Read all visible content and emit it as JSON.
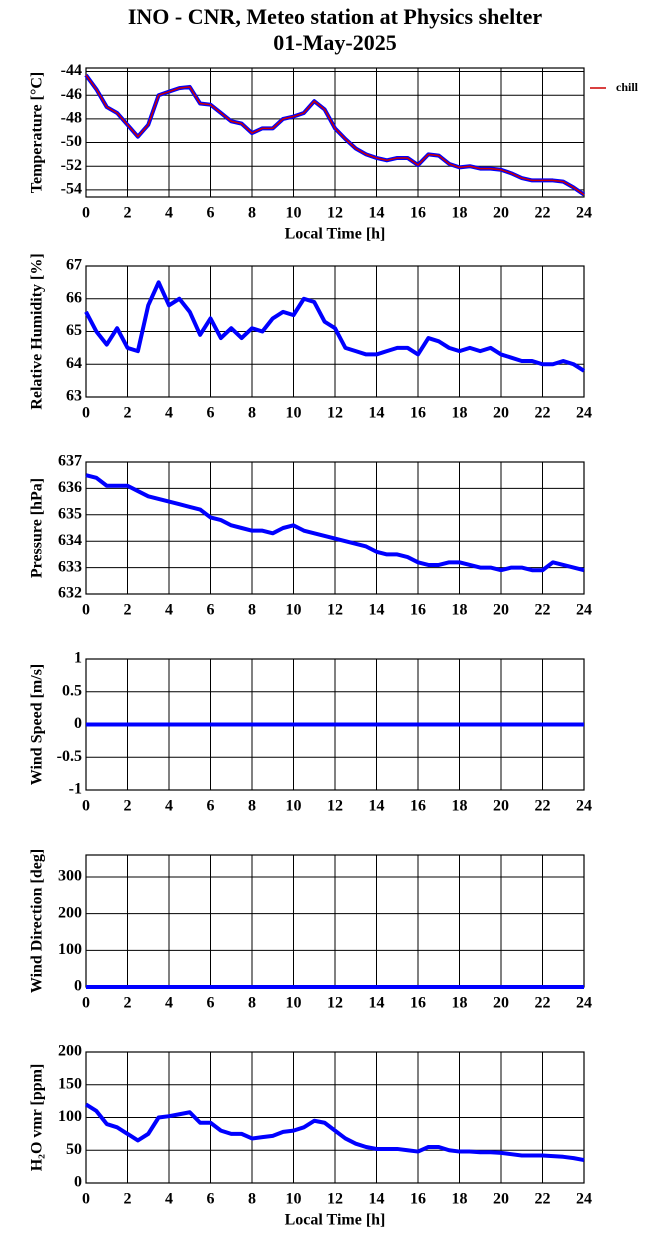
{
  "title": "INO - CNR, Meteo station at Physics shelter",
  "date": "01-May-2025",
  "chart_data": [
    {
      "type": "line",
      "ylabel": "Temperature [°C]",
      "xlabel": "Local Time [h]",
      "x": [
        0,
        0.5,
        1,
        1.5,
        2,
        2.5,
        3,
        3.5,
        4,
        4.5,
        5,
        5.5,
        6,
        6.5,
        7,
        7.5,
        8,
        8.5,
        9,
        9.5,
        10,
        10.5,
        11,
        11.5,
        12,
        12.5,
        13,
        13.5,
        14,
        14.5,
        15,
        15.5,
        16,
        16.5,
        17,
        17.5,
        18,
        18.5,
        19,
        19.5,
        20,
        20.5,
        21,
        21.5,
        22,
        22.5,
        23,
        23.5,
        24
      ],
      "series": [
        {
          "color": "#0000ff",
          "values": [
            -44.3,
            -45.5,
            -47.0,
            -47.5,
            -48.5,
            -49.5,
            -48.5,
            -46.0,
            -45.7,
            -45.4,
            -45.3,
            -46.7,
            -46.8,
            -47.5,
            -48.2,
            -48.4,
            -49.2,
            -48.8,
            -48.8,
            -48.0,
            -47.8,
            -47.5,
            -46.5,
            -47.2,
            -48.8,
            -49.7,
            -50.5,
            -51.0,
            -51.3,
            -51.5,
            -51.3,
            -51.3,
            -51.9,
            -51.0,
            -51.1,
            -51.8,
            -52.1,
            -52.0,
            -52.2,
            -52.2,
            -52.3,
            -52.6,
            -53.0,
            -53.2,
            -53.2,
            -53.2,
            -53.3,
            -53.8,
            -54.4
          ]
        },
        {
          "name": "chill",
          "color": "#cc0000",
          "values": [
            -44.3,
            -45.5,
            -47.0,
            -47.5,
            -48.5,
            -49.5,
            -48.5,
            -46.0,
            -45.7,
            -45.4,
            -45.3,
            -46.7,
            -46.8,
            -47.5,
            -48.2,
            -48.4,
            -49.2,
            -48.8,
            -48.8,
            -48.0,
            -47.8,
            -47.5,
            -46.5,
            -47.2,
            -48.8,
            -49.7,
            -50.5,
            -51.0,
            -51.3,
            -51.5,
            -51.3,
            -51.3,
            -51.9,
            -51.0,
            -51.1,
            -51.8,
            -52.1,
            -52.0,
            -52.2,
            -52.2,
            -52.3,
            -52.6,
            -53.0,
            -53.2,
            -53.2,
            -53.2,
            -53.3,
            -53.8,
            -54.4
          ]
        }
      ],
      "xlim": [
        0,
        24
      ],
      "xticks": [
        0,
        2,
        4,
        6,
        8,
        10,
        12,
        14,
        16,
        18,
        20,
        22,
        24
      ],
      "ylim": [
        -54.6,
        -43.7
      ],
      "yticks": [
        -54,
        -52,
        -50,
        -48,
        -46,
        -44
      ],
      "grid": true,
      "legend": "right"
    },
    {
      "type": "line",
      "ylabel": "Relative Humidity [%]",
      "x": [
        0,
        0.5,
        1,
        1.5,
        2,
        2.5,
        3,
        3.5,
        4,
        4.5,
        5,
        5.5,
        6,
        6.5,
        7,
        7.5,
        8,
        8.5,
        9,
        9.5,
        10,
        10.5,
        11,
        11.5,
        12,
        12.5,
        13,
        13.5,
        14,
        14.5,
        15,
        15.5,
        16,
        16.5,
        17,
        17.5,
        18,
        18.5,
        19,
        19.5,
        20,
        20.5,
        21,
        21.5,
        22,
        22.5,
        23,
        23.5,
        24
      ],
      "series": [
        {
          "color": "#0000ff",
          "values": [
            65.6,
            65.0,
            64.6,
            65.1,
            64.5,
            64.4,
            65.8,
            66.5,
            65.8,
            66.0,
            65.6,
            64.9,
            65.4,
            64.8,
            65.1,
            64.8,
            65.1,
            65.0,
            65.4,
            65.6,
            65.5,
            66.0,
            65.9,
            65.3,
            65.1,
            64.5,
            64.4,
            64.3,
            64.3,
            64.4,
            64.5,
            64.5,
            64.3,
            64.8,
            64.7,
            64.5,
            64.4,
            64.5,
            64.4,
            64.5,
            64.3,
            64.2,
            64.1,
            64.1,
            64.0,
            64.0,
            64.1,
            64.0,
            63.8
          ]
        }
      ],
      "xlim": [
        0,
        24
      ],
      "xticks": [
        0,
        2,
        4,
        6,
        8,
        10,
        12,
        14,
        16,
        18,
        20,
        22,
        24
      ],
      "ylim": [
        63,
        67
      ],
      "yticks": [
        63,
        64,
        65,
        66,
        67
      ],
      "grid": true
    },
    {
      "type": "line",
      "ylabel": "Pressure [hPa]",
      "x": [
        0,
        0.5,
        1,
        1.5,
        2,
        2.5,
        3,
        3.5,
        4,
        4.5,
        5,
        5.5,
        6,
        6.5,
        7,
        7.5,
        8,
        8.5,
        9,
        9.5,
        10,
        10.5,
        11,
        11.5,
        12,
        12.5,
        13,
        13.5,
        14,
        14.5,
        15,
        15.5,
        16,
        16.5,
        17,
        17.5,
        18,
        18.5,
        19,
        19.5,
        20,
        20.5,
        21,
        21.5,
        22,
        22.5,
        23,
        23.5,
        24
      ],
      "series": [
        {
          "color": "#0000ff",
          "values": [
            636.5,
            636.4,
            636.1,
            636.1,
            636.1,
            635.9,
            635.7,
            635.6,
            635.5,
            635.4,
            635.3,
            635.2,
            634.9,
            634.8,
            634.6,
            634.5,
            634.4,
            634.4,
            634.3,
            634.5,
            634.6,
            634.4,
            634.3,
            634.2,
            634.1,
            634.0,
            633.9,
            633.8,
            633.6,
            633.5,
            633.5,
            633.4,
            633.2,
            633.1,
            633.1,
            633.2,
            633.2,
            633.1,
            633.0,
            633.0,
            632.9,
            633.0,
            633.0,
            632.9,
            632.9,
            633.2,
            633.1,
            633.0,
            632.9
          ]
        }
      ],
      "xlim": [
        0,
        24
      ],
      "xticks": [
        0,
        2,
        4,
        6,
        8,
        10,
        12,
        14,
        16,
        18,
        20,
        22,
        24
      ],
      "ylim": [
        632,
        637
      ],
      "yticks": [
        632,
        633,
        634,
        635,
        636,
        637
      ],
      "grid": true
    },
    {
      "type": "line",
      "ylabel": "Wind Speed [m/s]",
      "x": [
        0,
        24
      ],
      "series": [
        {
          "color": "#0000ff",
          "values": [
            0,
            0
          ]
        }
      ],
      "xlim": [
        0,
        24
      ],
      "xticks": [
        0,
        2,
        4,
        6,
        8,
        10,
        12,
        14,
        16,
        18,
        20,
        22,
        24
      ],
      "ylim": [
        -1,
        1
      ],
      "yticks": [
        -1,
        -0.5,
        0,
        0.5,
        1
      ],
      "grid": true
    },
    {
      "type": "line",
      "ylabel": "Wind Direction [deg]",
      "x": [
        0,
        24
      ],
      "series": [
        {
          "color": "#0000ff",
          "values": [
            0,
            0
          ]
        }
      ],
      "xlim": [
        0,
        24
      ],
      "xticks": [
        0,
        2,
        4,
        6,
        8,
        10,
        12,
        14,
        16,
        18,
        20,
        22,
        24
      ],
      "ylim": [
        0,
        360
      ],
      "yticks": [
        0,
        100,
        200,
        300
      ],
      "grid": true
    },
    {
      "type": "line",
      "ylabel": "H₂O vmr [ppm]",
      "xlabel": "Local Time [h]",
      "x": [
        0,
        0.5,
        1,
        1.5,
        2,
        2.5,
        3,
        3.5,
        4,
        4.5,
        5,
        5.5,
        6,
        6.5,
        7,
        7.5,
        8,
        8.5,
        9,
        9.5,
        10,
        10.5,
        11,
        11.5,
        12,
        12.5,
        13,
        13.5,
        14,
        14.5,
        15,
        15.5,
        16,
        16.5,
        17,
        17.5,
        18,
        18.5,
        19,
        19.5,
        20,
        20.5,
        21,
        21.5,
        22,
        22.5,
        23,
        23.5,
        24
      ],
      "series": [
        {
          "color": "#0000ff",
          "values": [
            120,
            110,
            90,
            85,
            75,
            65,
            75,
            100,
            102,
            105,
            108,
            92,
            92,
            80,
            75,
            75,
            68,
            70,
            72,
            78,
            80,
            85,
            95,
            92,
            80,
            68,
            60,
            55,
            52,
            52,
            52,
            50,
            48,
            55,
            55,
            50,
            48,
            48,
            47,
            47,
            46,
            44,
            42,
            42,
            42,
            41,
            40,
            38,
            35
          ]
        }
      ],
      "xlim": [
        0,
        24
      ],
      "xticks": [
        0,
        2,
        4,
        6,
        8,
        10,
        12,
        14,
        16,
        18,
        20,
        22,
        24
      ],
      "ylim": [
        0,
        200
      ],
      "yticks": [
        0,
        50,
        100,
        150,
        200
      ],
      "grid": true
    }
  ]
}
